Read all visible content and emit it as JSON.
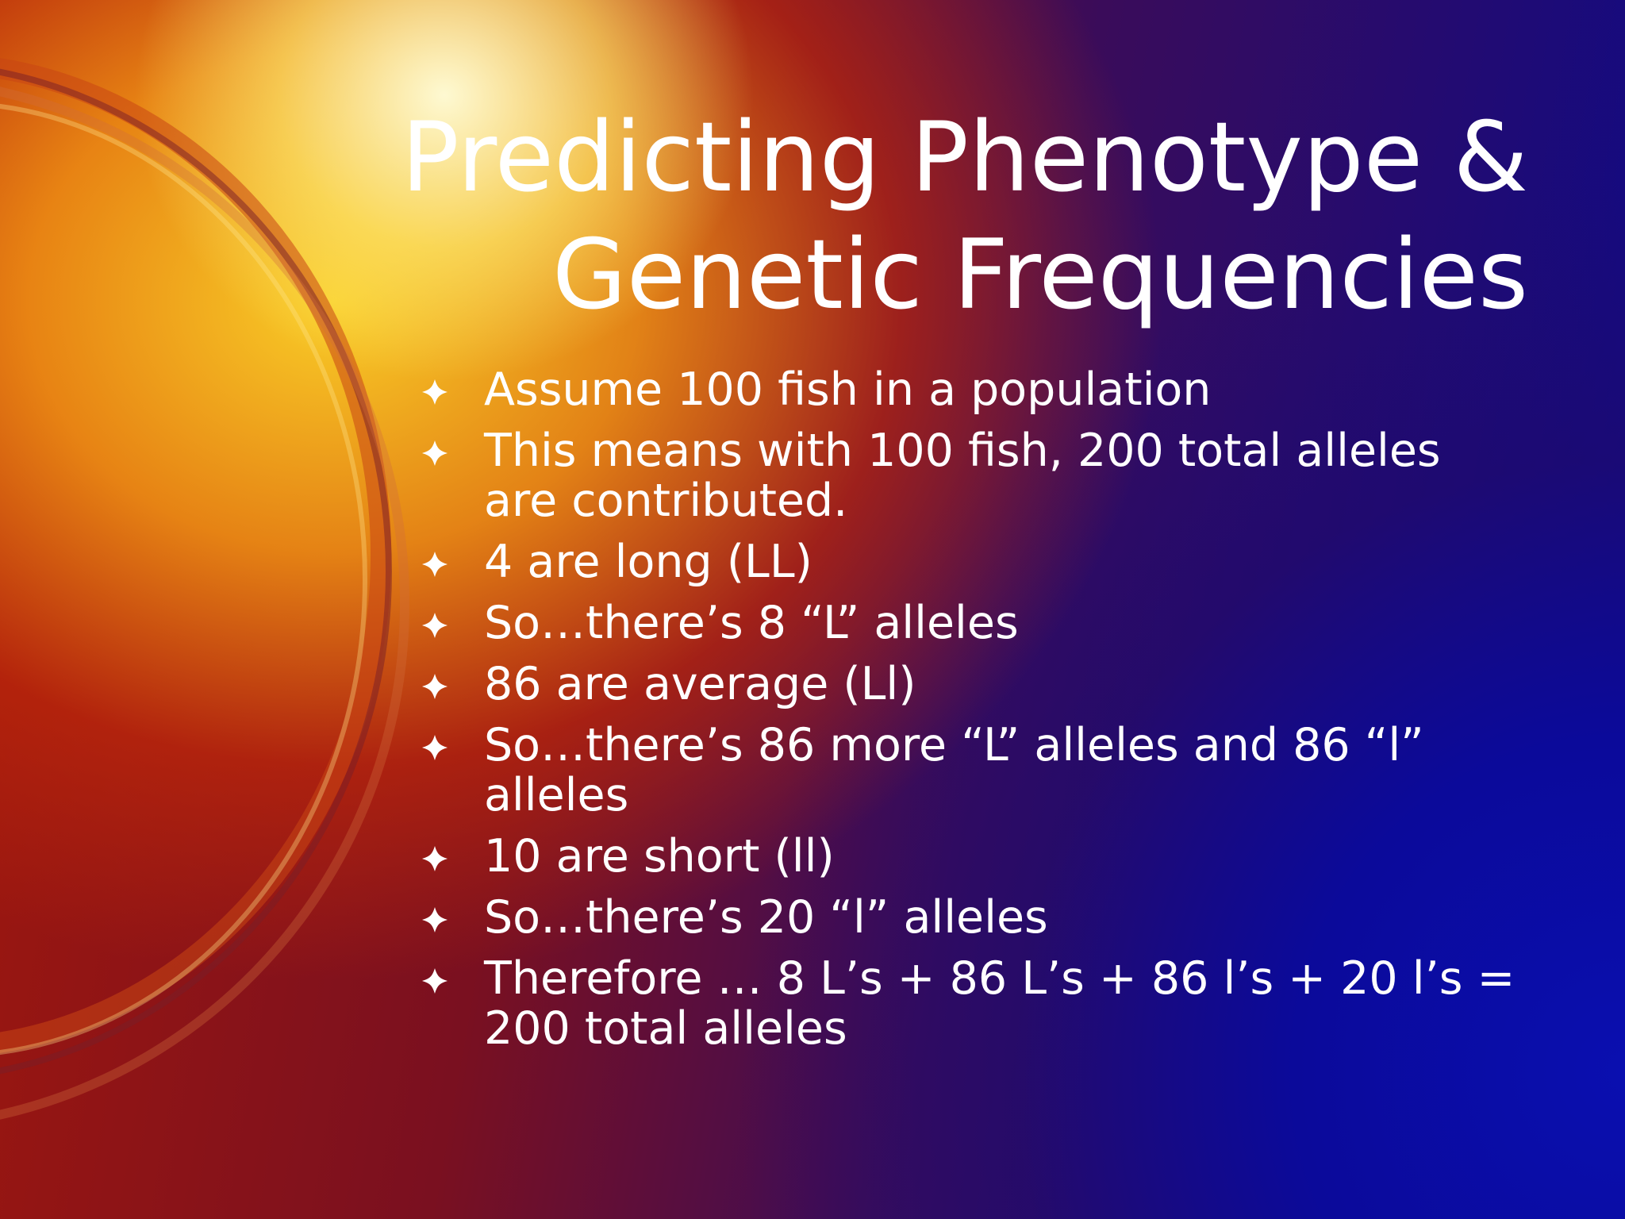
{
  "slide": {
    "title": [
      "Predicting Phenotype &",
      "Genetic Frequencies"
    ],
    "bullets": [
      [
        "Assume 100 fish in a population"
      ],
      [
        "This means with 100 fish, 200 total alleles",
        "are contributed."
      ],
      [
        "4 are long (LL)"
      ],
      [
        "So…there’s 8 “L” alleles"
      ],
      [
        "86 are average (Ll)"
      ],
      [
        "So…there’s 86 more “L” alleles and 86 “l”",
        "alleles"
      ],
      [
        "10 are short (ll)"
      ],
      [
        "So…there’s 20 “l” alleles"
      ],
      [
        "Therefore … 8 L’s + 86 L’s + 86 l’s + 20 l’s =",
        "200 total alleles"
      ]
    ]
  }
}
